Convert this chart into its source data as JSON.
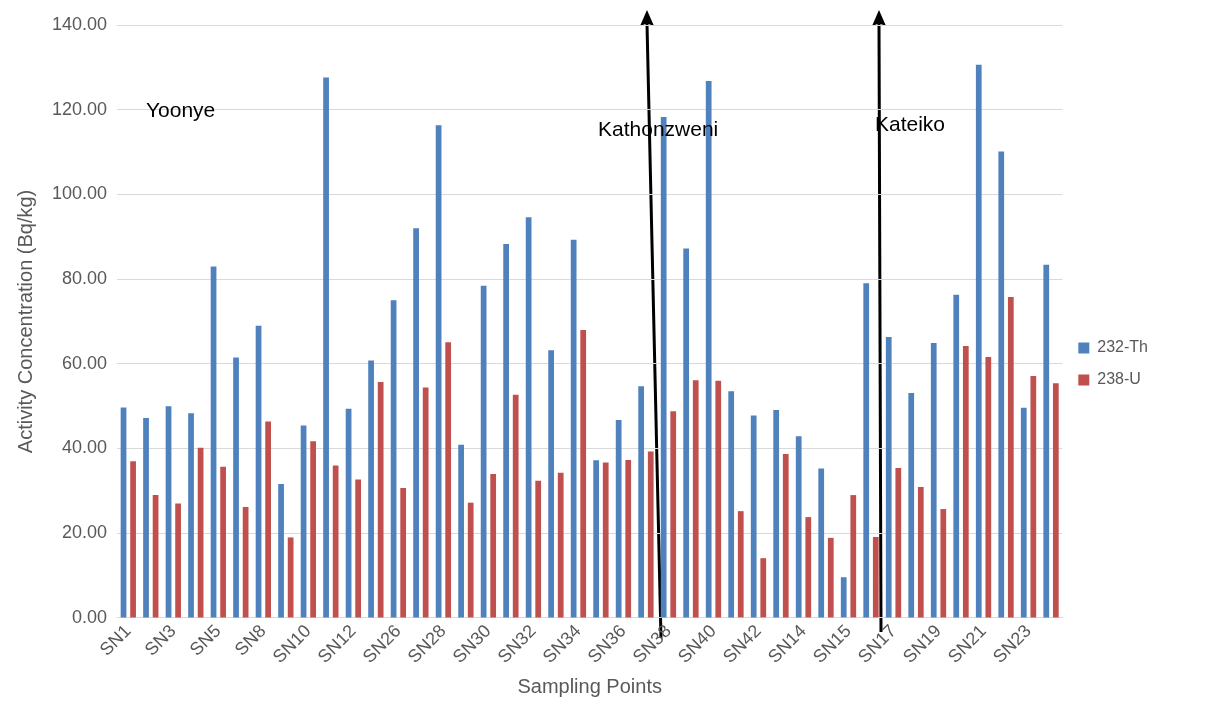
{
  "chart_data": {
    "type": "bar",
    "xlabel": "Sampling Points",
    "ylabel": "Activity Concentration (Bq/kg)",
    "categories": [
      "SN1",
      null,
      "SN3",
      null,
      "SN5",
      null,
      "SN8",
      null,
      "SN10",
      null,
      "SN12",
      null,
      "SN26",
      null,
      "SN28",
      null,
      "SN30",
      null,
      "SN32",
      null,
      "SN34",
      null,
      "SN36",
      null,
      "SN38",
      null,
      "SN40",
      null,
      "SN42",
      null,
      "SN14",
      null,
      "SN15",
      null,
      "SN17",
      null,
      "SN19",
      null,
      "SN21",
      null,
      "SN23",
      null
    ],
    "series": [
      {
        "name": "232-Th",
        "color": "#4f81bd",
        "values": [
          49.7,
          47.2,
          50,
          48.3,
          83,
          61.5,
          69,
          31.6,
          45.4,
          127.6,
          49.4,
          60.8,
          75,
          92,
          116.3,
          40.9,
          78.4,
          88.3,
          94.6,
          63.2,
          89.3,
          37.2,
          46.7,
          54.7,
          118.3,
          87.2,
          126.8,
          53.5,
          47.8,
          49.1,
          42.9,
          35.3,
          9.6,
          79,
          66.3,
          53.1,
          64.9,
          76.3,
          130.6,
          110.1,
          49.6,
          83.4
        ]
      },
      {
        "name": "238-U",
        "color": "#c0504d",
        "values": [
          37,
          29,
          27,
          40.2,
          35.7,
          26.2,
          46.4,
          19,
          41.7,
          36,
          32.7,
          55.7,
          30.7,
          54.4,
          65.1,
          27.2,
          34,
          52.7,
          32.4,
          34.3,
          68,
          36.7,
          37.3,
          39.3,
          48.8,
          56.1,
          56,
          25.2,
          14.1,
          38.7,
          23.8,
          18.9,
          29,
          19.1,
          35.4,
          30.9,
          25.7,
          64.2,
          61.6,
          75.8,
          57.1,
          55.4
        ]
      }
    ],
    "ylim": [
      0,
      140
    ],
    "yticks": [
      {
        "value": 0,
        "label": "0.00"
      },
      {
        "value": 20,
        "label": "20.00"
      },
      {
        "value": 40,
        "label": "40.00"
      },
      {
        "value": 60,
        "label": "60.00"
      },
      {
        "value": 80,
        "label": "80.00"
      },
      {
        "value": 100,
        "label": "100.00"
      },
      {
        "value": 120,
        "label": "120.00"
      },
      {
        "value": 140,
        "label": "140.00"
      }
    ],
    "grid": "y",
    "legend": "right",
    "annotations": [
      "Yoonye",
      "Kathonzweni",
      "Kateiko"
    ]
  }
}
